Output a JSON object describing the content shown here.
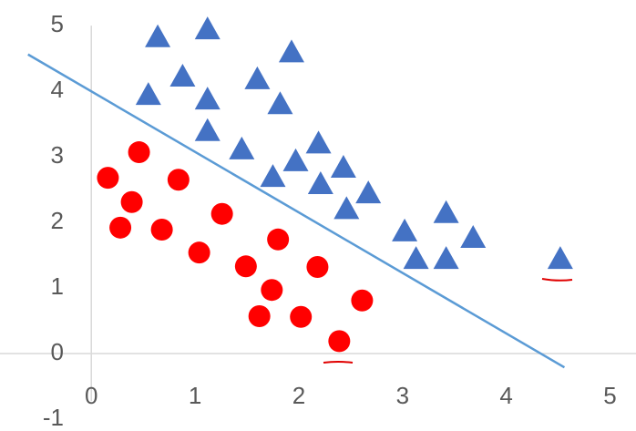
{
  "chart_data": {
    "type": "scatter",
    "xlim": [
      -0.88,
      5.25
    ],
    "ylim": [
      -1.18,
      5.39
    ],
    "xticks": [
      0,
      1,
      2,
      3,
      4,
      5
    ],
    "yticks": [
      -1,
      0,
      1,
      2,
      3,
      4,
      5
    ],
    "series": [
      {
        "type": "scatter",
        "marker": "triangle",
        "color": "#4472c4",
        "x": [
          0.64,
          1.12,
          0.55,
          0.88,
          1.12,
          1.12,
          1.6,
          1.93,
          1.82,
          1.45,
          1.75,
          1.97,
          2.19,
          2.21,
          2.43,
          2.46,
          2.67,
          3.02,
          3.13,
          3.42,
          3.42,
          3.68,
          4.52
        ],
        "values": [
          4.81,
          4.93,
          3.93,
          4.21,
          3.86,
          3.38,
          4.17,
          4.58,
          3.79,
          3.1,
          2.68,
          2.92,
          3.19,
          2.57,
          2.82,
          2.19,
          2.43,
          1.85,
          1.43,
          2.13,
          1.43,
          1.75,
          1.43
        ]
      },
      {
        "type": "scatter",
        "marker": "circle",
        "color": "#ff0000",
        "x": [
          0.16,
          0.46,
          0.39,
          0.28,
          0.84,
          0.68,
          1.26,
          1.04,
          1.8,
          1.49,
          1.74,
          1.62,
          2.02,
          2.18,
          2.61,
          2.39
        ],
        "values": [
          2.68,
          3.07,
          2.31,
          1.92,
          2.65,
          1.89,
          2.13,
          1.54,
          1.74,
          1.33,
          0.97,
          0.57,
          0.56,
          1.32,
          0.81,
          0.19
        ]
      },
      {
        "type": "line",
        "color": "#5b9bd5",
        "x": [
          -0.61,
          4.56
        ],
        "values": [
          4.56,
          -0.21
        ]
      }
    ]
  }
}
